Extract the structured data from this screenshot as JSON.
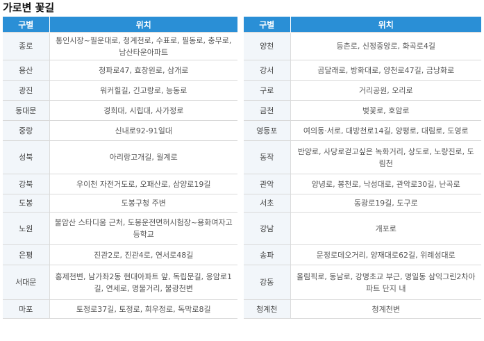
{
  "title": "가로변 꽃길",
  "left_table": {
    "headers": [
      "구별",
      "위치"
    ],
    "rows": [
      {
        "district": "종로",
        "location": "통인시장~필운대로, 청계천로, 수표로, 필동로, 충무로, 남산타운아파트"
      },
      {
        "district": "용산",
        "location": "청파로47, 효창원로, 삼개로"
      },
      {
        "district": "광진",
        "location": "워커힐길, 긴고랑로, 능동로"
      },
      {
        "district": "동대문",
        "location": "경희대, 시립대, 사가정로"
      },
      {
        "district": "중랑",
        "location": "신내로92-91일대"
      },
      {
        "district": "성북",
        "location": "아리랑고개길, 월계로"
      },
      {
        "district": "강북",
        "location": "우이천 자전거도로, 오패산로, 삼양로19길"
      },
      {
        "district": "도봉",
        "location": "도봉구청 주변"
      },
      {
        "district": "노원",
        "location": "불암산 스타디움 근처, 도봉운전면허시험장~용화여자고등학교"
      },
      {
        "district": "은평",
        "location": "진관2로, 진관4로, 연서로48길"
      },
      {
        "district": "서대문",
        "location": "홍제천변, 남가좌2동 현대아파트 앞, 독립문길, 응암로1길, 연세로, 명물거리, 불광천변"
      },
      {
        "district": "마포",
        "location": "토정로37길, 토정로, 희우정로, 독막로8길"
      }
    ]
  },
  "right_table": {
    "headers": [
      "구별",
      "위치"
    ],
    "rows": [
      {
        "district": "양천",
        "location": "등촌로, 신정중앙로, 화곡로4길"
      },
      {
        "district": "강서",
        "location": "곰달래로, 방화대로, 양천로47길, 금낭화로"
      },
      {
        "district": "구로",
        "location": "거리공원, 오리로"
      },
      {
        "district": "금천",
        "location": "벚꽃로, 호암로"
      },
      {
        "district": "영등포",
        "location": "여의동·서로, 대방천로14길, 양평로, 대림로, 도영로"
      },
      {
        "district": "동작",
        "location": "반양로, 사당로걷고싶은 녹화거리, 상도로, 노량진로, 도림천"
      },
      {
        "district": "관악",
        "location": "양녕로, 봉천로, 낙성대로, 관악로30길, 난곡로"
      },
      {
        "district": "서초",
        "location": "동광로19길, 도구로"
      },
      {
        "district": "강남",
        "location": "개포로"
      },
      {
        "district": "송파",
        "location": "문정로데오거리, 양재대로62길, 위례성대로"
      },
      {
        "district": "강동",
        "location": "올림픽로, 동남로, 강명초교 부근, 명일동 삼익그린2차아파트 단지 내"
      },
      {
        "district": "청계천",
        "location": "청계천변"
      }
    ]
  }
}
